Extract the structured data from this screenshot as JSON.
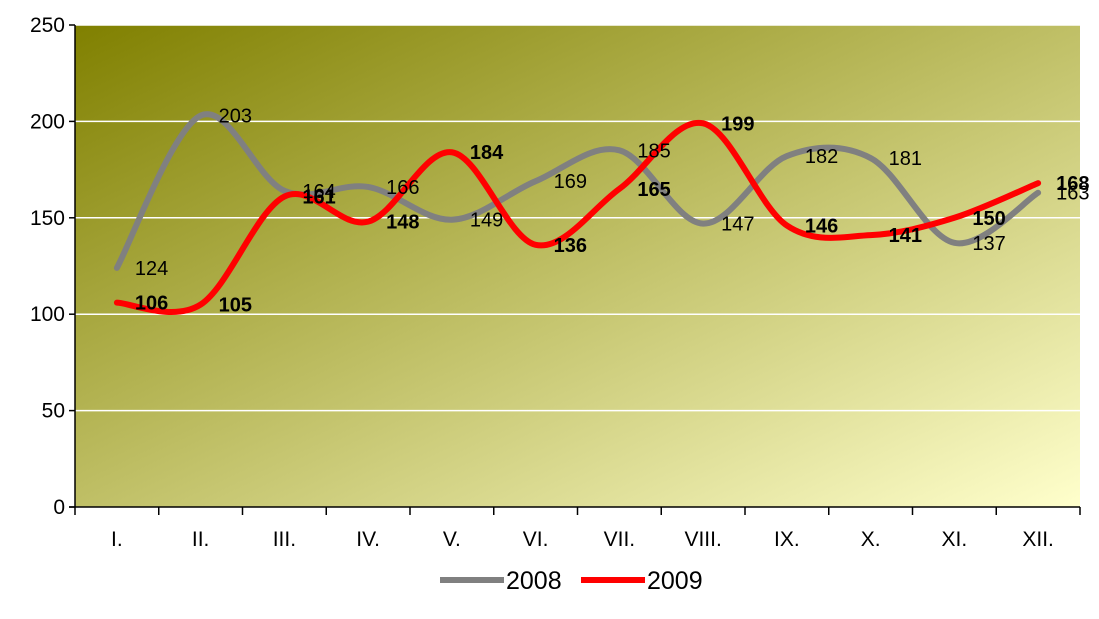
{
  "chart_data": {
    "type": "line",
    "title": "",
    "xlabel": "",
    "ylabel": "",
    "categories": [
      "I.",
      "II.",
      "III.",
      "IV.",
      "V.",
      "VI.",
      "VII.",
      "VIII.",
      "IX.",
      "X.",
      "XI.",
      "XII."
    ],
    "ylim": [
      0,
      250
    ],
    "yticks": [
      "0",
      "50",
      "100",
      "150",
      "200",
      "250"
    ],
    "grid": true,
    "smooth": true,
    "legend_position": "bottom",
    "series": [
      {
        "name": "2008",
        "color": "#808080",
        "label_bold": false,
        "values": [
          124,
          203,
          164,
          166,
          149,
          169,
          185,
          147,
          182,
          181,
          137,
          163
        ]
      },
      {
        "name": "2009",
        "color": "#ff0000",
        "label_bold": true,
        "values": [
          106,
          105,
          161,
          148,
          184,
          136,
          165,
          199,
          146,
          141,
          150,
          168
        ]
      }
    ],
    "plot_background": {
      "from": "#808000",
      "to": "#ffffcc"
    }
  }
}
